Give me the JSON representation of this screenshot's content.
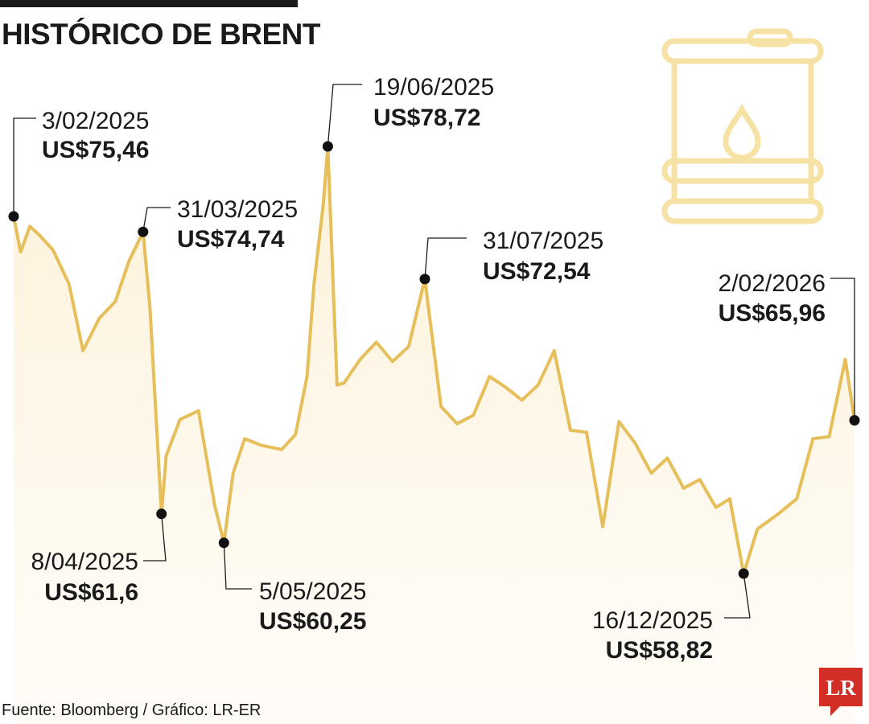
{
  "header": {
    "title": "HISTÓRICO DE BRENT"
  },
  "footer": {
    "source": "Fuente: Bloomberg / Gráfico: LR-ER",
    "logo_text": "LR"
  },
  "colors": {
    "line": "#E7BF5A",
    "area": "#FDF4E2",
    "text": "#1a1a1a",
    "icon": "#F7E2A6",
    "logo": "#D22E26"
  },
  "icons": {
    "decor": "oil-barrel-icon"
  },
  "chart_data": {
    "type": "area",
    "title": "HISTÓRICO DE BRENT",
    "xlabel": "",
    "ylabel": "",
    "grid": false,
    "x_range": [
      "2025-02-03",
      "2026-02-02"
    ],
    "ylim": [
      55,
      82
    ],
    "series": [
      {
        "x": [
          "2025-02-03",
          "2025-02-06",
          "2025-02-10",
          "2025-02-14",
          "2025-02-20",
          "2025-02-27",
          "2025-03-05",
          "2025-03-12",
          "2025-03-19",
          "2025-03-25",
          "2025-03-31",
          "2025-04-03",
          "2025-04-08",
          "2025-04-10",
          "2025-04-16",
          "2025-04-24",
          "2025-05-01",
          "2025-05-05",
          "2025-05-09",
          "2025-05-14",
          "2025-05-21",
          "2025-05-30",
          "2025-06-05",
          "2025-06-10",
          "2025-06-13",
          "2025-06-17",
          "2025-06-19",
          "2025-06-23",
          "2025-06-26",
          "2025-07-03",
          "2025-07-10",
          "2025-07-17",
          "2025-07-24",
          "2025-07-31",
          "2025-08-07",
          "2025-08-14",
          "2025-08-21",
          "2025-08-28",
          "2025-09-04",
          "2025-09-11",
          "2025-09-18",
          "2025-09-25",
          "2025-10-02",
          "2025-10-09",
          "2025-10-16",
          "2025-10-23",
          "2025-10-30",
          "2025-11-06",
          "2025-11-13",
          "2025-11-20",
          "2025-11-27",
          "2025-12-04",
          "2025-12-10",
          "2025-12-16",
          "2025-12-22",
          "2025-12-31",
          "2026-01-08",
          "2026-01-15",
          "2026-01-22",
          "2026-01-29",
          "2026-02-02"
        ],
        "values": [
          75.46,
          73.8,
          75.0,
          74.6,
          73.9,
          72.3,
          69.2,
          70.7,
          71.5,
          73.4,
          74.74,
          71.2,
          61.6,
          64.3,
          66.0,
          66.4,
          62.0,
          60.25,
          63.5,
          65.1,
          64.8,
          64.6,
          65.3,
          68.0,
          72.3,
          76.0,
          78.72,
          67.6,
          67.7,
          68.8,
          69.6,
          68.7,
          69.4,
          72.54,
          66.6,
          65.8,
          66.2,
          68.0,
          67.5,
          66.9,
          67.6,
          69.2,
          65.5,
          65.4,
          61.0,
          65.9,
          64.9,
          63.5,
          64.2,
          62.8,
          63.2,
          61.9,
          62.3,
          58.82,
          60.9,
          61.6,
          62.3,
          65.1,
          65.2,
          68.8,
          65.96
        ]
      }
    ],
    "annotations": [
      {
        "date_label": "3/02/2025",
        "value_label": "US$75,46",
        "x": "2025-02-03",
        "y": 75.46
      },
      {
        "date_label": "31/03/2025",
        "value_label": "US$74,74",
        "x": "2025-03-31",
        "y": 74.74
      },
      {
        "date_label": "8/04/2025",
        "value_label": "US$61,6",
        "x": "2025-04-08",
        "y": 61.6
      },
      {
        "date_label": "5/05/2025",
        "value_label": "US$60,25",
        "x": "2025-05-05",
        "y": 60.25
      },
      {
        "date_label": "19/06/2025",
        "value_label": "US$78,72",
        "x": "2025-06-19",
        "y": 78.72
      },
      {
        "date_label": "31/07/2025",
        "value_label": "US$72,54",
        "x": "2025-07-31",
        "y": 72.54
      },
      {
        "date_label": "16/12/2025",
        "value_label": "US$58,82",
        "x": "2025-12-16",
        "y": 58.82
      },
      {
        "date_label": "2/02/2026",
        "value_label": "US$65,96",
        "x": "2026-02-02",
        "y": 65.96
      }
    ]
  }
}
